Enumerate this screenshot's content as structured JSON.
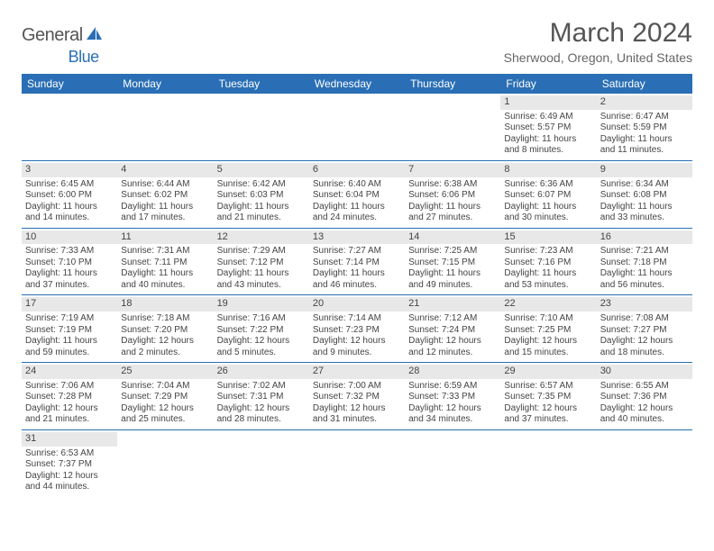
{
  "logo": {
    "text1": "General",
    "text2": "Blue"
  },
  "title": "March 2024",
  "location": "Sherwood, Oregon, United States",
  "colors": {
    "header_bg": "#2a6fb5",
    "daynum_bg": "#e8e8e8",
    "text": "#444444",
    "title_text": "#555555"
  },
  "dayNames": [
    "Sunday",
    "Monday",
    "Tuesday",
    "Wednesday",
    "Thursday",
    "Friday",
    "Saturday"
  ],
  "weeks": [
    [
      {
        "n": "",
        "sr": "",
        "ss": "",
        "dl": ""
      },
      {
        "n": "",
        "sr": "",
        "ss": "",
        "dl": ""
      },
      {
        "n": "",
        "sr": "",
        "ss": "",
        "dl": ""
      },
      {
        "n": "",
        "sr": "",
        "ss": "",
        "dl": ""
      },
      {
        "n": "",
        "sr": "",
        "ss": "",
        "dl": ""
      },
      {
        "n": "1",
        "sr": "Sunrise: 6:49 AM",
        "ss": "Sunset: 5:57 PM",
        "dl": "Daylight: 11 hours and 8 minutes."
      },
      {
        "n": "2",
        "sr": "Sunrise: 6:47 AM",
        "ss": "Sunset: 5:59 PM",
        "dl": "Daylight: 11 hours and 11 minutes."
      }
    ],
    [
      {
        "n": "3",
        "sr": "Sunrise: 6:45 AM",
        "ss": "Sunset: 6:00 PM",
        "dl": "Daylight: 11 hours and 14 minutes."
      },
      {
        "n": "4",
        "sr": "Sunrise: 6:44 AM",
        "ss": "Sunset: 6:02 PM",
        "dl": "Daylight: 11 hours and 17 minutes."
      },
      {
        "n": "5",
        "sr": "Sunrise: 6:42 AM",
        "ss": "Sunset: 6:03 PM",
        "dl": "Daylight: 11 hours and 21 minutes."
      },
      {
        "n": "6",
        "sr": "Sunrise: 6:40 AM",
        "ss": "Sunset: 6:04 PM",
        "dl": "Daylight: 11 hours and 24 minutes."
      },
      {
        "n": "7",
        "sr": "Sunrise: 6:38 AM",
        "ss": "Sunset: 6:06 PM",
        "dl": "Daylight: 11 hours and 27 minutes."
      },
      {
        "n": "8",
        "sr": "Sunrise: 6:36 AM",
        "ss": "Sunset: 6:07 PM",
        "dl": "Daylight: 11 hours and 30 minutes."
      },
      {
        "n": "9",
        "sr": "Sunrise: 6:34 AM",
        "ss": "Sunset: 6:08 PM",
        "dl": "Daylight: 11 hours and 33 minutes."
      }
    ],
    [
      {
        "n": "10",
        "sr": "Sunrise: 7:33 AM",
        "ss": "Sunset: 7:10 PM",
        "dl": "Daylight: 11 hours and 37 minutes."
      },
      {
        "n": "11",
        "sr": "Sunrise: 7:31 AM",
        "ss": "Sunset: 7:11 PM",
        "dl": "Daylight: 11 hours and 40 minutes."
      },
      {
        "n": "12",
        "sr": "Sunrise: 7:29 AM",
        "ss": "Sunset: 7:12 PM",
        "dl": "Daylight: 11 hours and 43 minutes."
      },
      {
        "n": "13",
        "sr": "Sunrise: 7:27 AM",
        "ss": "Sunset: 7:14 PM",
        "dl": "Daylight: 11 hours and 46 minutes."
      },
      {
        "n": "14",
        "sr": "Sunrise: 7:25 AM",
        "ss": "Sunset: 7:15 PM",
        "dl": "Daylight: 11 hours and 49 minutes."
      },
      {
        "n": "15",
        "sr": "Sunrise: 7:23 AM",
        "ss": "Sunset: 7:16 PM",
        "dl": "Daylight: 11 hours and 53 minutes."
      },
      {
        "n": "16",
        "sr": "Sunrise: 7:21 AM",
        "ss": "Sunset: 7:18 PM",
        "dl": "Daylight: 11 hours and 56 minutes."
      }
    ],
    [
      {
        "n": "17",
        "sr": "Sunrise: 7:19 AM",
        "ss": "Sunset: 7:19 PM",
        "dl": "Daylight: 11 hours and 59 minutes."
      },
      {
        "n": "18",
        "sr": "Sunrise: 7:18 AM",
        "ss": "Sunset: 7:20 PM",
        "dl": "Daylight: 12 hours and 2 minutes."
      },
      {
        "n": "19",
        "sr": "Sunrise: 7:16 AM",
        "ss": "Sunset: 7:22 PM",
        "dl": "Daylight: 12 hours and 5 minutes."
      },
      {
        "n": "20",
        "sr": "Sunrise: 7:14 AM",
        "ss": "Sunset: 7:23 PM",
        "dl": "Daylight: 12 hours and 9 minutes."
      },
      {
        "n": "21",
        "sr": "Sunrise: 7:12 AM",
        "ss": "Sunset: 7:24 PM",
        "dl": "Daylight: 12 hours and 12 minutes."
      },
      {
        "n": "22",
        "sr": "Sunrise: 7:10 AM",
        "ss": "Sunset: 7:25 PM",
        "dl": "Daylight: 12 hours and 15 minutes."
      },
      {
        "n": "23",
        "sr": "Sunrise: 7:08 AM",
        "ss": "Sunset: 7:27 PM",
        "dl": "Daylight: 12 hours and 18 minutes."
      }
    ],
    [
      {
        "n": "24",
        "sr": "Sunrise: 7:06 AM",
        "ss": "Sunset: 7:28 PM",
        "dl": "Daylight: 12 hours and 21 minutes."
      },
      {
        "n": "25",
        "sr": "Sunrise: 7:04 AM",
        "ss": "Sunset: 7:29 PM",
        "dl": "Daylight: 12 hours and 25 minutes."
      },
      {
        "n": "26",
        "sr": "Sunrise: 7:02 AM",
        "ss": "Sunset: 7:31 PM",
        "dl": "Daylight: 12 hours and 28 minutes."
      },
      {
        "n": "27",
        "sr": "Sunrise: 7:00 AM",
        "ss": "Sunset: 7:32 PM",
        "dl": "Daylight: 12 hours and 31 minutes."
      },
      {
        "n": "28",
        "sr": "Sunrise: 6:59 AM",
        "ss": "Sunset: 7:33 PM",
        "dl": "Daylight: 12 hours and 34 minutes."
      },
      {
        "n": "29",
        "sr": "Sunrise: 6:57 AM",
        "ss": "Sunset: 7:35 PM",
        "dl": "Daylight: 12 hours and 37 minutes."
      },
      {
        "n": "30",
        "sr": "Sunrise: 6:55 AM",
        "ss": "Sunset: 7:36 PM",
        "dl": "Daylight: 12 hours and 40 minutes."
      }
    ],
    [
      {
        "n": "31",
        "sr": "Sunrise: 6:53 AM",
        "ss": "Sunset: 7:37 PM",
        "dl": "Daylight: 12 hours and 44 minutes."
      },
      {
        "n": "",
        "sr": "",
        "ss": "",
        "dl": ""
      },
      {
        "n": "",
        "sr": "",
        "ss": "",
        "dl": ""
      },
      {
        "n": "",
        "sr": "",
        "ss": "",
        "dl": ""
      },
      {
        "n": "",
        "sr": "",
        "ss": "",
        "dl": ""
      },
      {
        "n": "",
        "sr": "",
        "ss": "",
        "dl": ""
      },
      {
        "n": "",
        "sr": "",
        "ss": "",
        "dl": ""
      }
    ]
  ]
}
